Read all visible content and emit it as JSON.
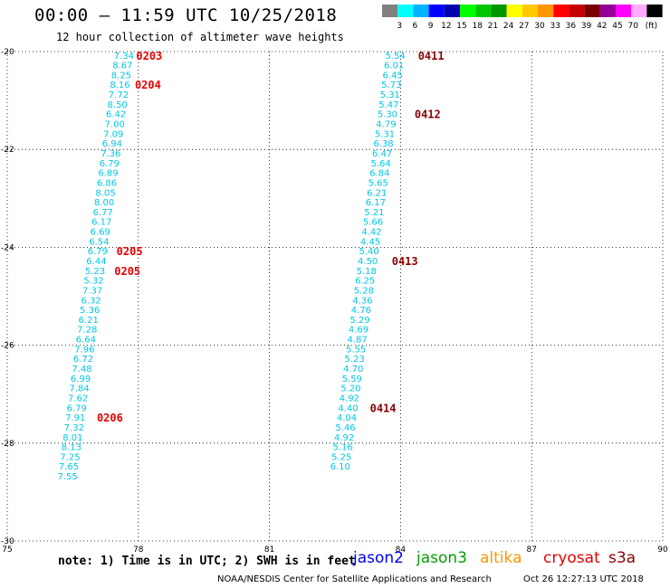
{
  "header": {
    "title": "00:00 – 11:59 UTC 10/25/2018",
    "subtitle": "12 hour collection of altimeter wave heights"
  },
  "legend": {
    "colors": [
      "#808080",
      "#00ffff",
      "#00b4ff",
      "#0000ff",
      "#0000b0",
      "#00ff00",
      "#00c800",
      "#009600",
      "#ffff00",
      "#ffc800",
      "#ff9600",
      "#ff0000",
      "#c80000",
      "#780000",
      "#960096",
      "#ff00ff",
      "#ffaaff",
      "#000000"
    ],
    "labels": [
      "3",
      "6",
      "9",
      "12",
      "15",
      "18",
      "21",
      "24",
      "27",
      "30",
      "33",
      "36",
      "39",
      "42",
      "45",
      "70"
    ],
    "unit": "(ft)"
  },
  "chart_data": {
    "type": "scatter",
    "xlim": [
      75,
      90
    ],
    "ylim": [
      -30,
      -20
    ],
    "x_ticks": [
      75,
      78,
      81,
      84,
      87,
      90
    ],
    "y_ticks": [
      -20,
      -22,
      -24,
      -26,
      -28,
      -30
    ],
    "grid": true,
    "track1": {
      "color": "#00c8e6",
      "points": [
        [
          77.9,
          -20.07,
          "7.34"
        ],
        [
          77.87,
          -20.27,
          "8.67"
        ],
        [
          77.84,
          -20.47,
          "8.25"
        ],
        [
          77.81,
          -20.67,
          "8.16"
        ],
        [
          77.78,
          -20.87,
          "7.72"
        ],
        [
          77.75,
          -21.07,
          "8.50"
        ],
        [
          77.72,
          -21.27,
          "6.42"
        ],
        [
          77.69,
          -21.47,
          "7.00"
        ],
        [
          77.66,
          -21.67,
          "7.09"
        ],
        [
          77.63,
          -21.87,
          "6.94"
        ],
        [
          77.6,
          -22.07,
          "7.36"
        ],
        [
          77.57,
          -22.27,
          "6.79"
        ],
        [
          77.54,
          -22.47,
          "6.89"
        ],
        [
          77.51,
          -22.67,
          "6.86"
        ],
        [
          77.48,
          -22.87,
          "8.05"
        ],
        [
          77.45,
          -23.07,
          "8.00"
        ],
        [
          77.42,
          -23.27,
          "6.77"
        ],
        [
          77.39,
          -23.47,
          "6.17"
        ],
        [
          77.36,
          -23.67,
          "6.69"
        ],
        [
          77.33,
          -23.87,
          "6.54"
        ],
        [
          77.3,
          -24.07,
          "6.79"
        ],
        [
          77.27,
          -24.27,
          "6.44"
        ],
        [
          77.24,
          -24.47,
          "5.23"
        ],
        [
          77.21,
          -24.67,
          "5.32"
        ],
        [
          77.18,
          -24.87,
          "7.37"
        ],
        [
          77.15,
          -25.07,
          "6.32"
        ],
        [
          77.12,
          -25.27,
          "5.36"
        ],
        [
          77.09,
          -25.47,
          "6.21"
        ],
        [
          77.06,
          -25.67,
          "7.28"
        ],
        [
          77.03,
          -25.87,
          "6.64"
        ],
        [
          77.0,
          -26.07,
          "7.96"
        ],
        [
          76.97,
          -26.27,
          "6.72"
        ],
        [
          76.94,
          -26.47,
          "7.48"
        ],
        [
          76.91,
          -26.67,
          "6.99"
        ],
        [
          76.88,
          -26.87,
          "7.84"
        ],
        [
          76.85,
          -27.07,
          "7.62"
        ],
        [
          76.82,
          -27.27,
          "6.79"
        ],
        [
          76.79,
          -27.47,
          "7.91"
        ],
        [
          76.76,
          -27.67,
          "7.32"
        ],
        [
          76.73,
          -27.87,
          "8.01"
        ],
        [
          76.7,
          -28.07,
          "8.13"
        ],
        [
          76.67,
          -28.27,
          "7.25"
        ],
        [
          76.64,
          -28.47,
          "7.65"
        ],
        [
          76.61,
          -28.67,
          "7.55"
        ]
      ],
      "times": [
        [
          77.95,
          -20.07,
          "0203"
        ],
        [
          77.92,
          -20.67,
          "0204"
        ],
        [
          77.5,
          -24.07,
          "0205"
        ],
        [
          77.45,
          -24.47,
          "0205"
        ],
        [
          77.05,
          -27.47,
          "0206"
        ]
      ]
    },
    "track2": {
      "color": "#00c8e6",
      "points": [
        [
          84.11,
          -20.07,
          "5.54"
        ],
        [
          84.08,
          -20.27,
          "6.01"
        ],
        [
          84.05,
          -20.47,
          "6.45"
        ],
        [
          84.02,
          -20.67,
          "5.73"
        ],
        [
          83.99,
          -20.87,
          "5.31"
        ],
        [
          83.96,
          -21.07,
          "5.47"
        ],
        [
          83.93,
          -21.27,
          "5.30"
        ],
        [
          83.9,
          -21.47,
          "4.79"
        ],
        [
          83.87,
          -21.67,
          "5.31"
        ],
        [
          83.84,
          -21.87,
          "6.38"
        ],
        [
          83.81,
          -22.07,
          "6.47"
        ],
        [
          83.78,
          -22.27,
          "5.64"
        ],
        [
          83.75,
          -22.47,
          "6.84"
        ],
        [
          83.72,
          -22.67,
          "5.65"
        ],
        [
          83.69,
          -22.87,
          "6.21"
        ],
        [
          83.66,
          -23.07,
          "6.17"
        ],
        [
          83.63,
          -23.27,
          "5.21"
        ],
        [
          83.6,
          -23.47,
          "5.66"
        ],
        [
          83.57,
          -23.67,
          "4.42"
        ],
        [
          83.54,
          -23.87,
          "4.45"
        ],
        [
          83.51,
          -24.07,
          "5.40"
        ],
        [
          83.48,
          -24.27,
          "4.50"
        ],
        [
          83.45,
          -24.47,
          "5.18"
        ],
        [
          83.42,
          -24.67,
          "6.25"
        ],
        [
          83.39,
          -24.87,
          "5.28"
        ],
        [
          83.36,
          -25.07,
          "4.36"
        ],
        [
          83.33,
          -25.27,
          "4.76"
        ],
        [
          83.3,
          -25.47,
          "5.29"
        ],
        [
          83.27,
          -25.67,
          "4.69"
        ],
        [
          83.24,
          -25.87,
          "4.87"
        ],
        [
          83.21,
          -26.07,
          "5.55"
        ],
        [
          83.18,
          -26.27,
          "5.23"
        ],
        [
          83.15,
          -26.47,
          "4.70"
        ],
        [
          83.12,
          -26.67,
          "5.59"
        ],
        [
          83.09,
          -26.87,
          "5.20"
        ],
        [
          83.06,
          -27.07,
          "4.92"
        ],
        [
          83.03,
          -27.27,
          "4.40"
        ],
        [
          83.0,
          -27.47,
          "4.04"
        ],
        [
          82.97,
          -27.67,
          "5.46"
        ],
        [
          82.94,
          -27.87,
          "4.92"
        ],
        [
          82.91,
          -28.07,
          "5.16"
        ],
        [
          82.88,
          -28.27,
          "5.25"
        ],
        [
          82.85,
          -28.47,
          "6.10"
        ]
      ],
      "times": [
        [
          84.4,
          -20.07,
          "0411"
        ],
        [
          84.32,
          -21.27,
          "0412"
        ],
        [
          83.8,
          -24.27,
          "0413"
        ],
        [
          83.3,
          -27.27,
          "0414"
        ]
      ]
    }
  },
  "note": "note: 1) Time is in UTC; 2) SWH is in feet",
  "satellites": [
    {
      "name": "jason2",
      "color": "#0000ff"
    },
    {
      "name": "jason3",
      "color": "#00a000"
    },
    {
      "name": "altika",
      "color": "#ff9600"
    },
    {
      "name": "cryosat",
      "color": "#e60000"
    },
    {
      "name": "s3a",
      "color": "#8b0000"
    }
  ],
  "footer": "NOAA/NESDIS Center for Satellite Applications and Research",
  "footer_time": "Oct 26 12:27:13 UTC 2018"
}
